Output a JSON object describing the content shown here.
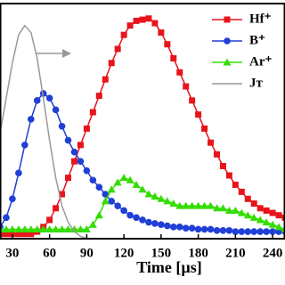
{
  "chart_data": {
    "type": "line",
    "xlabel": "Time [µs]",
    "x": [
      20,
      25,
      30,
      35,
      40,
      45,
      50,
      55,
      60,
      65,
      70,
      75,
      80,
      85,
      90,
      95,
      100,
      105,
      110,
      115,
      120,
      125,
      130,
      135,
      140,
      145,
      150,
      155,
      160,
      165,
      170,
      175,
      180,
      185,
      190,
      195,
      200,
      205,
      210,
      215,
      220,
      225,
      230,
      235,
      240,
      245,
      250
    ],
    "xlim": [
      20,
      250
    ],
    "xticks": [
      30,
      60,
      90,
      120,
      150,
      180,
      210,
      240
    ],
    "ylim": [
      0,
      1
    ],
    "series": [
      {
        "name": "Hf⁺",
        "color": "#e8141c",
        "marker": "square",
        "values": [
          0.02,
          0.02,
          0.02,
          0.02,
          0.02,
          0.02,
          0.03,
          0.05,
          0.08,
          0.13,
          0.19,
          0.26,
          0.33,
          0.4,
          0.47,
          0.54,
          0.61,
          0.68,
          0.75,
          0.81,
          0.87,
          0.91,
          0.93,
          0.935,
          0.94,
          0.92,
          0.88,
          0.83,
          0.77,
          0.71,
          0.65,
          0.59,
          0.53,
          0.47,
          0.41,
          0.36,
          0.31,
          0.27,
          0.23,
          0.2,
          0.17,
          0.15,
          0.13,
          0.12,
          0.11,
          0.1,
          0.09
        ]
      },
      {
        "name": "B⁺",
        "color": "#1f3fd6",
        "marker": "circle",
        "values": [
          0.05,
          0.09,
          0.17,
          0.28,
          0.4,
          0.51,
          0.59,
          0.62,
          0.6,
          0.55,
          0.48,
          0.42,
          0.37,
          0.33,
          0.29,
          0.25,
          0.22,
          0.19,
          0.16,
          0.14,
          0.12,
          0.1,
          0.09,
          0.08,
          0.07,
          0.065,
          0.06,
          0.055,
          0.05,
          0.05,
          0.045,
          0.045,
          0.04,
          0.04,
          0.04,
          0.035,
          0.035,
          0.035,
          0.03,
          0.03,
          0.03,
          0.03,
          0.03,
          0.03,
          0.03,
          0.03,
          0.03
        ]
      },
      {
        "name": "Ar⁺",
        "color": "#33dd00",
        "marker": "triangle",
        "values": [
          0.04,
          0.04,
          0.04,
          0.04,
          0.04,
          0.04,
          0.04,
          0.04,
          0.04,
          0.04,
          0.04,
          0.04,
          0.04,
          0.04,
          0.04,
          0.06,
          0.1,
          0.16,
          0.21,
          0.24,
          0.26,
          0.25,
          0.23,
          0.21,
          0.19,
          0.18,
          0.17,
          0.16,
          0.15,
          0.14,
          0.14,
          0.14,
          0.14,
          0.14,
          0.14,
          0.13,
          0.13,
          0.12,
          0.12,
          0.11,
          0.1,
          0.09,
          0.08,
          0.07,
          0.06,
          0.05,
          0.04
        ]
      },
      {
        "name": "Jᴛ",
        "color": "#999999",
        "marker": "none",
        "values": [
          0.45,
          0.6,
          0.75,
          0.87,
          0.91,
          0.88,
          0.77,
          0.6,
          0.42,
          0.26,
          0.14,
          0.07,
          0.03,
          0.01,
          0.0,
          null,
          null,
          null,
          null,
          null,
          null,
          null,
          null,
          null,
          null,
          null,
          null,
          null,
          null,
          null,
          null,
          null,
          null,
          null,
          null,
          null,
          null,
          null,
          null,
          null,
          null,
          null,
          null,
          null,
          null,
          null,
          null
        ]
      }
    ]
  }
}
